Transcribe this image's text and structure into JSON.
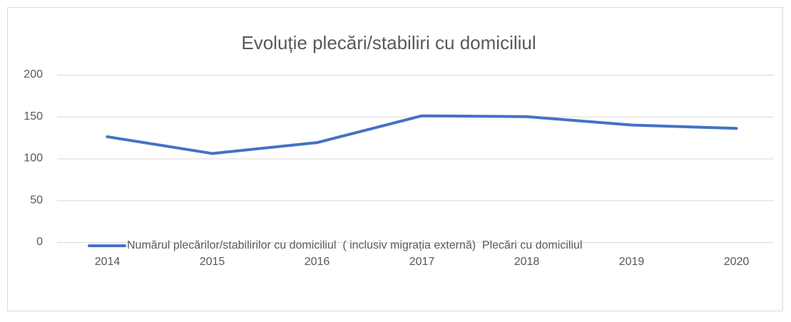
{
  "chart_data": {
    "type": "line",
    "title": "Evoluție plecări/stabiliri cu domiciliul",
    "categories": [
      "2014",
      "2015",
      "2016",
      "2017",
      "2018",
      "2019",
      "2020"
    ],
    "series": [
      {
        "name": "Numărul plecărilor/stabilirilor cu domiciliul  ( inclusiv migrația externă)  Plecări cu domiciliul",
        "color": "#4472c4",
        "values": [
          126,
          106,
          119,
          151,
          150,
          140,
          136
        ]
      }
    ],
    "ylim": [
      0,
      200
    ],
    "yticks": [
      0,
      50,
      100,
      150,
      200
    ],
    "grid": true
  }
}
